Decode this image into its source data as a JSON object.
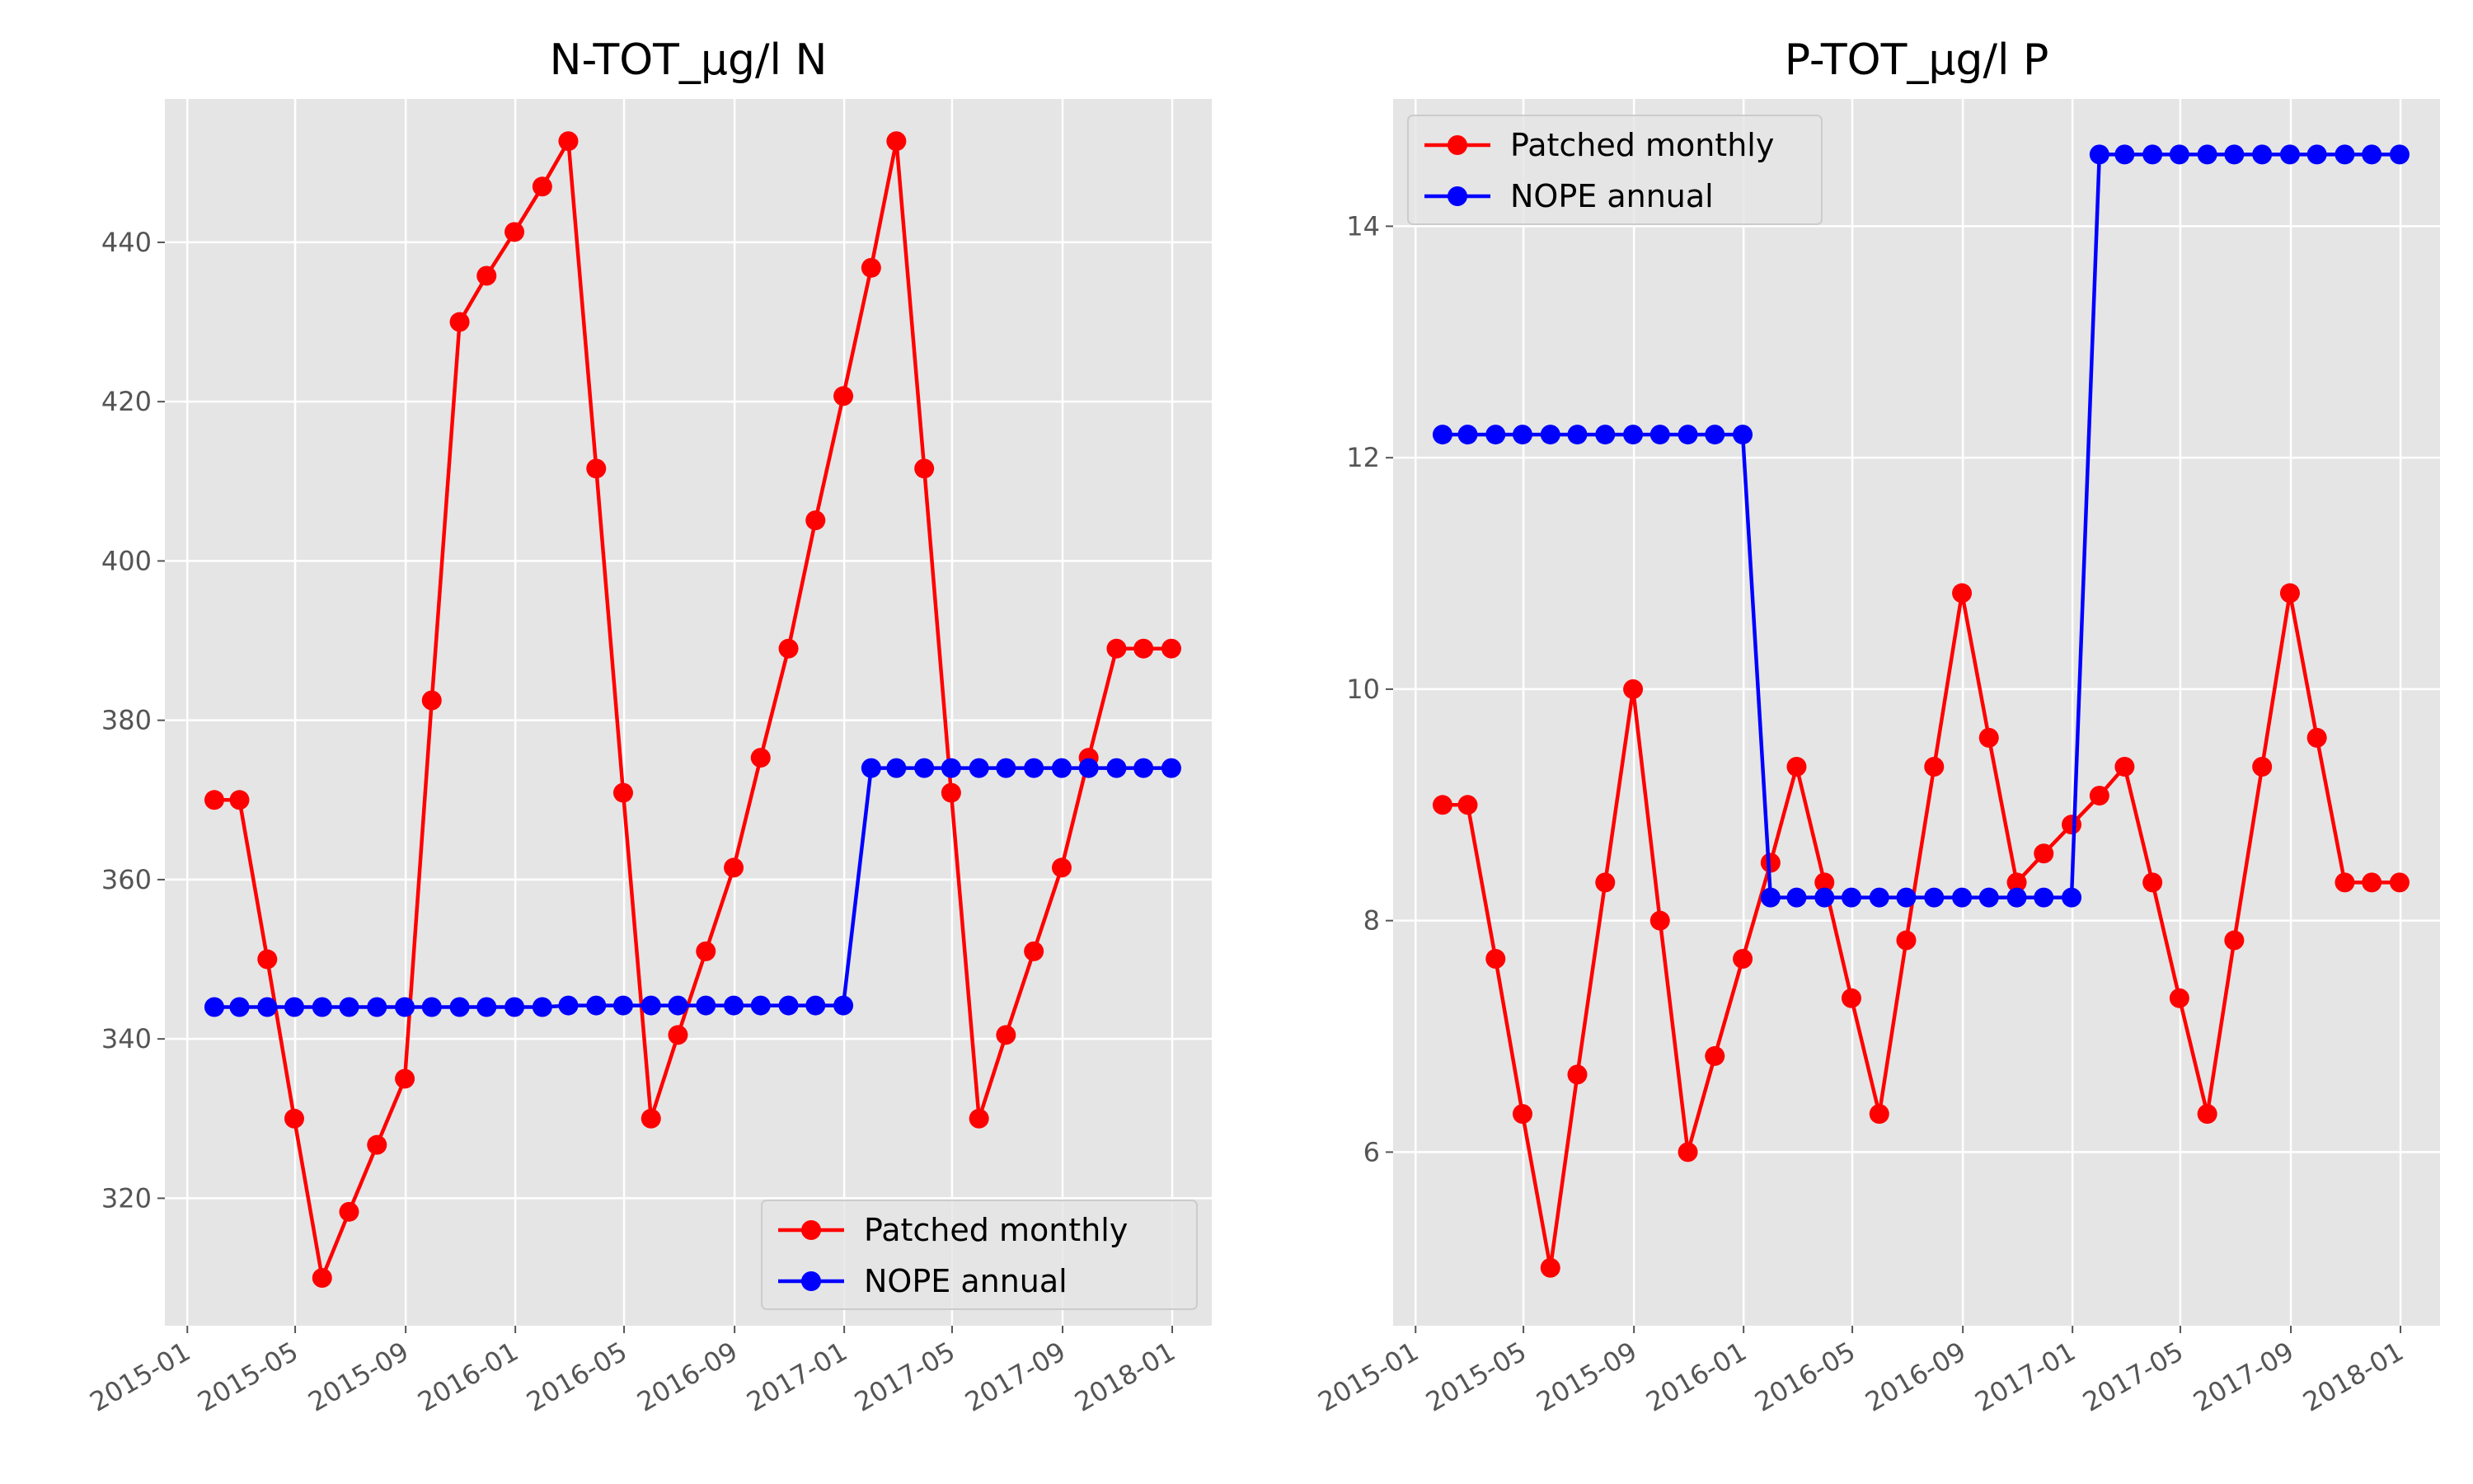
{
  "colors": {
    "patched": "#ff0000",
    "nope": "#0000ff",
    "background": "#e5e5e5",
    "grid": "#ffffff"
  },
  "chart_data": [
    {
      "type": "line",
      "title": "N-TOT_µg/l N",
      "xlabel": "",
      "ylabel": "",
      "x_type": "date",
      "xlim": [
        "2014-12-07",
        "2018-02-14"
      ],
      "ylim": [
        304,
        458
      ],
      "x_ticks": [
        "2015-01",
        "2015-05",
        "2015-09",
        "2016-01",
        "2016-05",
        "2016-09",
        "2017-01",
        "2017-05",
        "2017-09",
        "2018-01"
      ],
      "y_ticks": [
        320,
        340,
        360,
        380,
        400,
        420,
        440
      ],
      "grid": true,
      "legend_position": "lower-right",
      "series": [
        {
          "name": "Patched monthly",
          "color": "#ff0000",
          "x": [
            "2015-01-31",
            "2015-02-28",
            "2015-03-31",
            "2015-04-30",
            "2015-05-31",
            "2015-06-30",
            "2015-07-31",
            "2015-08-31",
            "2015-09-30",
            "2015-10-31",
            "2015-11-30",
            "2015-12-31",
            "2016-01-31",
            "2016-02-29",
            "2016-03-31",
            "2016-04-30",
            "2016-05-31",
            "2016-06-30",
            "2016-07-31",
            "2016-08-31",
            "2016-09-30",
            "2016-10-31",
            "2016-11-30",
            "2016-12-31",
            "2017-01-31",
            "2017-02-28",
            "2017-03-31",
            "2017-04-30",
            "2017-05-31",
            "2017-06-30",
            "2017-07-31",
            "2017-08-31",
            "2017-09-30",
            "2017-10-31",
            "2017-11-30",
            "2017-12-31"
          ],
          "y": [
            370,
            370,
            350,
            330,
            310,
            318.3,
            326.7,
            335,
            382.5,
            430,
            435.8,
            441.3,
            447,
            452.7,
            411.6,
            370.9,
            330,
            340.5,
            351,
            361.5,
            375.3,
            389,
            405.1,
            420.7,
            436.8,
            452.7,
            411.6,
            370.9,
            330,
            340.5,
            351,
            361.5,
            375.3,
            389,
            389,
            389
          ]
        },
        {
          "name": "NOPE annual",
          "color": "#0000ff",
          "x": [
            "2015-01-31",
            "2015-02-28",
            "2015-03-31",
            "2015-04-30",
            "2015-05-31",
            "2015-06-30",
            "2015-07-31",
            "2015-08-31",
            "2015-09-30",
            "2015-10-31",
            "2015-11-30",
            "2015-12-31",
            "2016-01-31",
            "2016-02-29",
            "2016-03-31",
            "2016-04-30",
            "2016-05-31",
            "2016-06-30",
            "2016-07-31",
            "2016-08-31",
            "2016-09-30",
            "2016-10-31",
            "2016-11-30",
            "2016-12-31",
            "2017-01-31",
            "2017-02-28",
            "2017-03-31",
            "2017-04-30",
            "2017-05-31",
            "2017-06-30",
            "2017-07-31",
            "2017-08-31",
            "2017-09-30",
            "2017-10-31",
            "2017-11-30",
            "2017-12-31"
          ],
          "y": [
            344,
            344,
            344,
            344,
            344,
            344,
            344,
            344,
            344,
            344,
            344,
            344,
            344,
            344.2,
            344.2,
            344.2,
            344.2,
            344.2,
            344.2,
            344.2,
            344.2,
            344.2,
            344.2,
            344.2,
            374,
            374,
            374,
            374,
            374,
            374,
            374,
            374,
            374,
            374,
            374,
            374
          ]
        }
      ]
    },
    {
      "type": "line",
      "title": "P-TOT_µg/l P",
      "xlabel": "",
      "ylabel": "",
      "x_type": "date",
      "xlim": [
        "2014-12-07",
        "2018-02-14"
      ],
      "ylim": [
        4.5,
        15.1
      ],
      "x_ticks": [
        "2015-01",
        "2015-05",
        "2015-09",
        "2016-01",
        "2016-05",
        "2016-09",
        "2017-01",
        "2017-05",
        "2017-09",
        "2018-01"
      ],
      "y_ticks": [
        6,
        8,
        10,
        12,
        14
      ],
      "grid": true,
      "legend_position": "upper-left",
      "series": [
        {
          "name": "Patched monthly",
          "color": "#ff0000",
          "x": [
            "2015-01-31",
            "2015-02-28",
            "2015-03-31",
            "2015-04-30",
            "2015-05-31",
            "2015-06-30",
            "2015-07-31",
            "2015-08-31",
            "2015-09-30",
            "2015-10-31",
            "2015-11-30",
            "2015-12-31",
            "2016-01-31",
            "2016-02-29",
            "2016-03-31",
            "2016-04-30",
            "2016-05-31",
            "2016-06-30",
            "2016-07-31",
            "2016-08-31",
            "2016-09-30",
            "2016-10-31",
            "2016-11-30",
            "2016-12-31",
            "2017-01-31",
            "2017-02-28",
            "2017-03-31",
            "2017-04-30",
            "2017-05-31",
            "2017-06-30",
            "2017-07-31",
            "2017-08-31",
            "2017-09-30",
            "2017-10-31",
            "2017-11-30",
            "2017-12-31"
          ],
          "y": [
            9.0,
            9.0,
            7.67,
            6.33,
            5.0,
            6.67,
            8.33,
            10.0,
            8.0,
            6.0,
            6.83,
            7.67,
            8.5,
            9.33,
            8.33,
            7.33,
            6.33,
            7.83,
            9.33,
            10.83,
            9.58,
            8.33,
            8.58,
            8.83,
            9.08,
            9.33,
            8.33,
            7.33,
            6.33,
            7.83,
            9.33,
            10.83,
            9.58,
            8.33,
            8.33,
            8.33
          ]
        },
        {
          "name": "NOPE annual",
          "color": "#0000ff",
          "x": [
            "2015-01-31",
            "2015-02-28",
            "2015-03-31",
            "2015-04-30",
            "2015-05-31",
            "2015-06-30",
            "2015-07-31",
            "2015-08-31",
            "2015-09-30",
            "2015-10-31",
            "2015-11-30",
            "2015-12-31",
            "2016-01-31",
            "2016-02-29",
            "2016-03-31",
            "2016-04-30",
            "2016-05-31",
            "2016-06-30",
            "2016-07-31",
            "2016-08-31",
            "2016-09-30",
            "2016-10-31",
            "2016-11-30",
            "2016-12-31",
            "2017-01-31",
            "2017-02-28",
            "2017-03-31",
            "2017-04-30",
            "2017-05-31",
            "2017-06-30",
            "2017-07-31",
            "2017-08-31",
            "2017-09-30",
            "2017-10-31",
            "2017-11-30",
            "2017-12-31"
          ],
          "y": [
            12.2,
            12.2,
            12.2,
            12.2,
            12.2,
            12.2,
            12.2,
            12.2,
            12.2,
            12.2,
            12.2,
            12.2,
            8.2,
            8.2,
            8.2,
            8.2,
            8.2,
            8.2,
            8.2,
            8.2,
            8.2,
            8.2,
            8.2,
            8.2,
            14.62,
            14.62,
            14.62,
            14.62,
            14.62,
            14.62,
            14.62,
            14.62,
            14.62,
            14.62,
            14.62,
            14.62
          ]
        }
      ]
    }
  ]
}
